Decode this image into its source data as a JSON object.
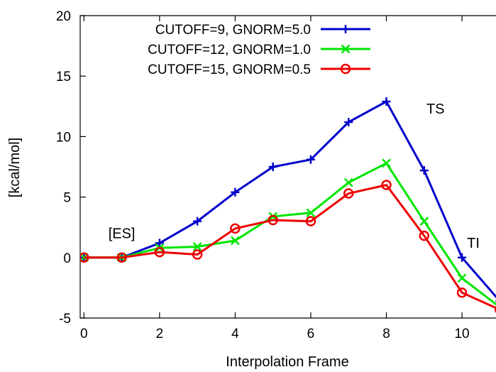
{
  "chart_data": {
    "type": "line",
    "title": "",
    "xlabel": "Interpolation Frame",
    "ylabel": "[kcal/mol]",
    "xlim": [
      -0.1,
      10.9
    ],
    "ylim": [
      -5,
      20
    ],
    "xticks": [
      0,
      2,
      4,
      6,
      8,
      10
    ],
    "yticks": [
      -5,
      0,
      5,
      10,
      15,
      20
    ],
    "grid": false,
    "legend_position": "top-left",
    "series": [
      {
        "name": "CUTOFF=9, GNORM=5.0",
        "color": "#0000cc",
        "marker": "plus",
        "x": [
          0,
          1,
          2,
          3,
          4,
          5,
          6,
          7,
          8,
          9,
          10,
          11
        ],
        "y": [
          0,
          0,
          1.2,
          3.0,
          5.4,
          7.5,
          8.1,
          11.2,
          12.9,
          7.2,
          0.0,
          -3.6
        ]
      },
      {
        "name": "CUTOFF=12, GNORM=1.0",
        "color": "#00e600",
        "marker": "cross",
        "x": [
          0,
          1,
          2,
          3,
          4,
          5,
          6,
          7,
          8,
          9,
          10,
          11
        ],
        "y": [
          0,
          0,
          0.8,
          0.9,
          1.4,
          3.4,
          3.7,
          6.2,
          7.8,
          3.0,
          -1.7,
          -4.1
        ]
      },
      {
        "name": "CUTOFF=15, GNORM=0.5",
        "color": "#ee0000",
        "marker": "circle",
        "x": [
          0,
          1,
          2,
          3,
          4,
          5,
          6,
          7,
          8,
          9,
          10,
          11
        ],
        "y": [
          0,
          0,
          0.45,
          0.25,
          2.4,
          3.1,
          3.0,
          5.3,
          6.0,
          1.8,
          -2.9,
          -4.3
        ]
      }
    ],
    "annotations": [
      {
        "text": "[ES]",
        "x": 1.0,
        "y": 1.6
      },
      {
        "text": "TS",
        "x": 9.3,
        "y": 11.9
      },
      {
        "text": "TI",
        "x": 10.3,
        "y": 0.8
      }
    ]
  }
}
